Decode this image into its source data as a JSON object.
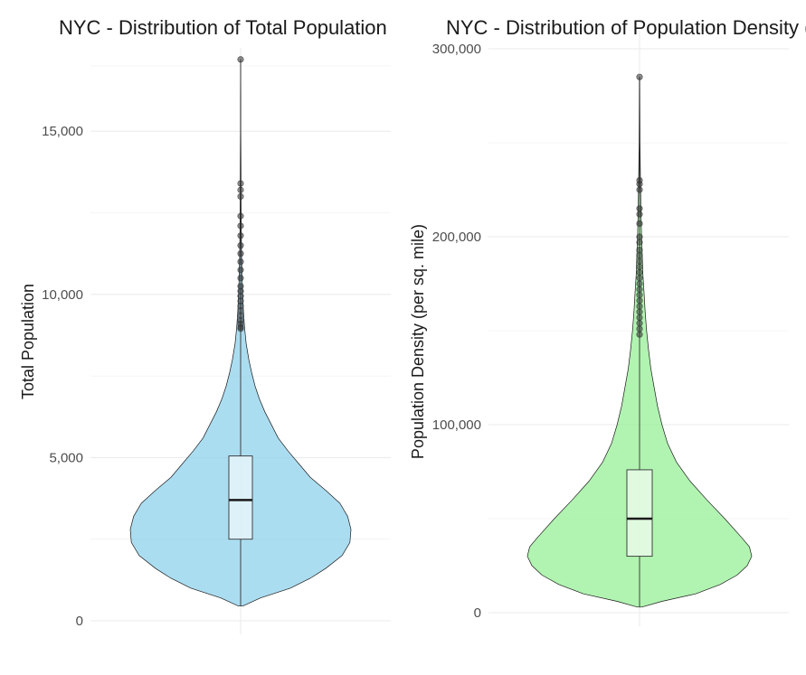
{
  "chart_data": [
    {
      "type": "violin",
      "title": "NYC - Distribution of Total Population",
      "xlabel": "",
      "ylabel": "Total Population",
      "ylim": [
        0,
        17000
      ],
      "y_ticks": [
        {
          "value": 0,
          "label": "0"
        },
        {
          "value": 5000,
          "label": "5,000"
        },
        {
          "value": 10000,
          "label": "10,000"
        },
        {
          "value": 15000,
          "label": "15,000"
        }
      ],
      "grid": true,
      "fill_color": "#87ceeb",
      "box": {
        "min": 450,
        "q1": 2500,
        "median": 3700,
        "q3": 5050,
        "max": 17200
      },
      "density": [
        [
          450,
          0.02
        ],
        [
          700,
          0.18
        ],
        [
          1000,
          0.45
        ],
        [
          1300,
          0.63
        ],
        [
          1600,
          0.77
        ],
        [
          2000,
          0.92
        ],
        [
          2400,
          0.99
        ],
        [
          2800,
          1.0
        ],
        [
          3200,
          0.97
        ],
        [
          3600,
          0.9
        ],
        [
          4000,
          0.77
        ],
        [
          4400,
          0.63
        ],
        [
          4800,
          0.53
        ],
        [
          5200,
          0.43
        ],
        [
          5600,
          0.34
        ],
        [
          6000,
          0.28
        ],
        [
          6400,
          0.22
        ],
        [
          6800,
          0.17
        ],
        [
          7200,
          0.13
        ],
        [
          7600,
          0.1
        ],
        [
          8000,
          0.075
        ],
        [
          8500,
          0.05
        ],
        [
          9000,
          0.035
        ],
        [
          9500,
          0.025
        ],
        [
          10000,
          0.018
        ],
        [
          11000,
          0.01
        ],
        [
          12000,
          0.006
        ],
        [
          13000,
          0.004
        ],
        [
          14000,
          0.003
        ],
        [
          15000,
          0.002
        ],
        [
          16000,
          0.0015
        ],
        [
          17200,
          0.001
        ]
      ],
      "outliers": [
        17200,
        13400,
        13200,
        13000,
        12400,
        12100,
        11800,
        11500,
        11250,
        11000,
        10750,
        10500,
        10250,
        10100,
        9950,
        9800,
        9650,
        9500,
        9350,
        9200,
        9100,
        9000,
        8950
      ]
    },
    {
      "type": "violin",
      "title": "NYC - Distribution of Population Density (per sq. mile)",
      "xlabel": "",
      "ylabel": "Population Density (per sq. mile)",
      "ylim": [
        0,
        300000
      ],
      "y_ticks": [
        {
          "value": 0,
          "label": "0"
        },
        {
          "value": 100000,
          "label": "100,000"
        },
        {
          "value": 200000,
          "label": "200,000"
        },
        {
          "value": 300000,
          "label": "300,000"
        }
      ],
      "grid": true,
      "fill_color": "#90ee90",
      "box": {
        "min": 3000,
        "q1": 30000,
        "median": 50000,
        "q3": 76000,
        "max": 285000
      },
      "density": [
        [
          3000,
          0.02
        ],
        [
          6000,
          0.2
        ],
        [
          10000,
          0.5
        ],
        [
          15000,
          0.72
        ],
        [
          20000,
          0.87
        ],
        [
          25000,
          0.96
        ],
        [
          30000,
          1.0
        ],
        [
          35000,
          0.98
        ],
        [
          40000,
          0.91
        ],
        [
          50000,
          0.76
        ],
        [
          60000,
          0.6
        ],
        [
          70000,
          0.45
        ],
        [
          80000,
          0.33
        ],
        [
          90000,
          0.25
        ],
        [
          100000,
          0.2
        ],
        [
          110000,
          0.16
        ],
        [
          120000,
          0.13
        ],
        [
          130000,
          0.1
        ],
        [
          140000,
          0.08
        ],
        [
          150000,
          0.063
        ],
        [
          160000,
          0.05
        ],
        [
          170000,
          0.04
        ],
        [
          180000,
          0.03
        ],
        [
          190000,
          0.024
        ],
        [
          200000,
          0.018
        ],
        [
          215000,
          0.012
        ],
        [
          230000,
          0.008
        ],
        [
          250000,
          0.004
        ],
        [
          270000,
          0.0025
        ],
        [
          285000,
          0.0015
        ]
      ],
      "outliers": [
        285000,
        230000,
        228000,
        225000,
        215000,
        212000,
        207000,
        200000,
        197000,
        193000,
        190000,
        187000,
        184000,
        181000,
        178000,
        175000,
        172000,
        169000,
        166000,
        163000,
        160000,
        157000,
        154000,
        151000,
        148000
      ]
    }
  ]
}
